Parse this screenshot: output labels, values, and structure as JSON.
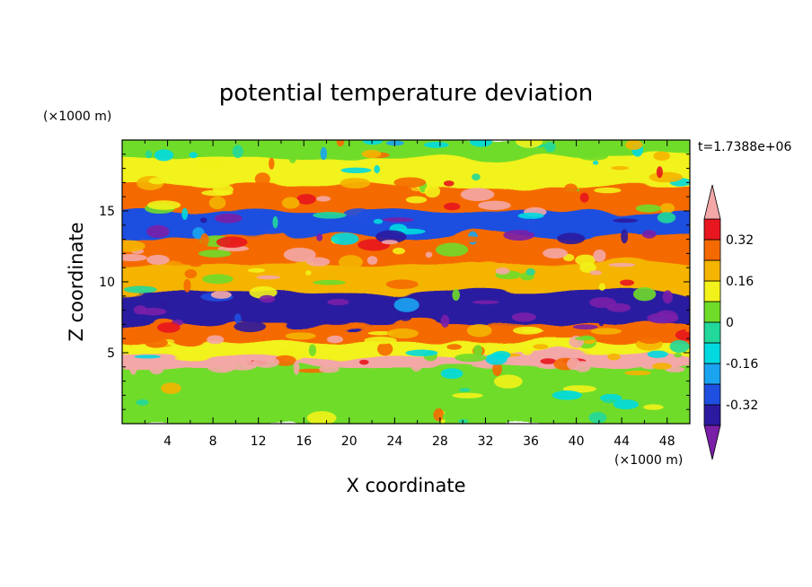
{
  "chart_data": {
    "type": "heatmap",
    "title": "potential temperature deviation",
    "xlabel": "X coordinate",
    "ylabel": "Z coordinate",
    "x_unit": "(×1000 m)",
    "y_unit": "(×1000 m)",
    "time_label": "t=1.7388e+06",
    "xlim": [
      0,
      50
    ],
    "ylim": [
      0,
      20
    ],
    "x_ticks": [
      4,
      8,
      12,
      16,
      20,
      24,
      28,
      32,
      36,
      40,
      44,
      48
    ],
    "y_ticks": [
      5,
      10,
      15
    ],
    "colorbar": {
      "labels": [
        "0.32",
        "0.16",
        "0",
        "-0.16",
        "-0.32"
      ],
      "label_values": [
        0.32,
        0.16,
        0,
        -0.16,
        -0.32
      ],
      "levels": [
        -0.4,
        -0.32,
        -0.24,
        -0.16,
        -0.08,
        0,
        0.08,
        0.16,
        0.24,
        0.32,
        0.4
      ],
      "colors": [
        "#7a1fa8",
        "#2b1aa0",
        "#1f4fe0",
        "#1aa4f0",
        "#00d9e0",
        "#22d89a",
        "#6fdc2a",
        "#f2f21a",
        "#f5b400",
        "#f56a00",
        "#e8161e",
        "#f4a7a7"
      ],
      "extends": "both"
    },
    "field_bands": [
      {
        "z_range": [
          18.5,
          20
        ],
        "value": 0.04
      },
      {
        "z_range": [
          16.5,
          18.5
        ],
        "value": 0.1
      },
      {
        "z_range": [
          14.8,
          16.5
        ],
        "value": 0.25
      },
      {
        "z_range": [
          13,
          14.8
        ],
        "value": -0.3
      },
      {
        "z_range": [
          11,
          13
        ],
        "value": 0.3
      },
      {
        "z_range": [
          9,
          11
        ],
        "value": 0.2
      },
      {
        "z_range": [
          6.8,
          9
        ],
        "value": -0.4
      },
      {
        "z_range": [
          5.5,
          6.8
        ],
        "value": 0.3
      },
      {
        "z_range": [
          4.5,
          5.5
        ],
        "value": 0.1
      },
      {
        "z_range": [
          3.8,
          4.5
        ],
        "value": 0.42
      },
      {
        "z_range": [
          0,
          3.8
        ],
        "value": 0.05
      }
    ]
  }
}
